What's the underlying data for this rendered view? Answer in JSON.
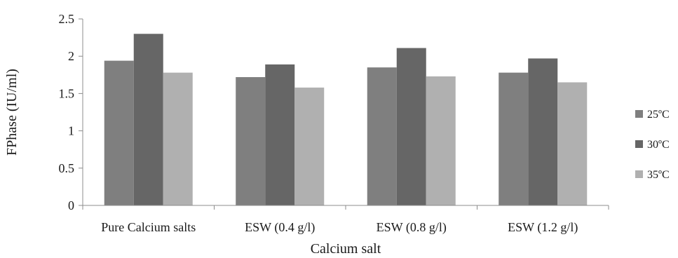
{
  "chart_data": {
    "type": "bar",
    "categories": [
      "Pure Calcium salts",
      "ESW (0.4 g/l)",
      "ESW (0.8 g/l)",
      "ESW (1.2 g/l)"
    ],
    "series": [
      {
        "name": "25ºC",
        "values": [
          1.94,
          1.72,
          1.85,
          1.78
        ],
        "color": "#7f7f7f"
      },
      {
        "name": "30ºC",
        "values": [
          2.3,
          1.89,
          2.11,
          1.97
        ],
        "color": "#666666"
      },
      {
        "name": "35ºC",
        "values": [
          1.78,
          1.58,
          1.73,
          1.65
        ],
        "color": "#b0b0b0"
      }
    ],
    "xlabel": "Calcium salt",
    "ylabel": "FPhase (IU/ml)",
    "ylim": [
      0,
      2.5
    ],
    "yticks": [
      "0",
      "0.5",
      "1",
      "1.5",
      "2",
      "2.5"
    ],
    "grid": false,
    "legend_position": "right"
  }
}
